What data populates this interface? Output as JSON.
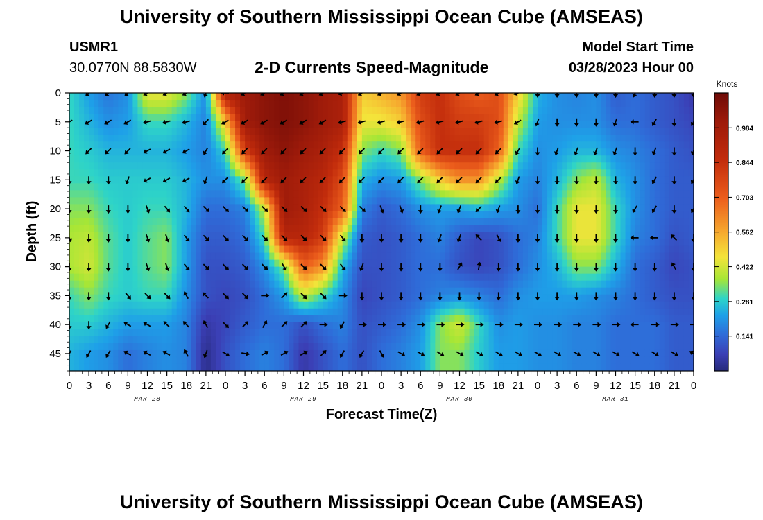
{
  "header": {
    "title": "University of Southern Mississippi Ocean Cube (AMSEAS)",
    "station_id": "USMR1",
    "coordinates": "30.0770N  88.5830W",
    "subtitle": "2-D Currents Speed-Magnitude",
    "model_start_label": "Model Start Time",
    "model_start_value": "03/28/2023 Hour 00"
  },
  "footer": {
    "title": "University of Southern Mississippi Ocean Cube (AMSEAS)"
  },
  "chart_data": {
    "type": "heatmap",
    "title": "2-D Currents Speed-Magnitude",
    "xlabel": "Forecast Time(Z)",
    "ylabel": "Depth (ft)",
    "x_ticks": [
      "0",
      "3",
      "6",
      "9",
      "12",
      "15",
      "18",
      "21",
      "0",
      "3",
      "6",
      "9",
      "12",
      "15",
      "18",
      "21",
      "0",
      "3",
      "6",
      "9",
      "12",
      "15",
      "18",
      "21",
      "0",
      "3",
      "6",
      "9",
      "12",
      "15",
      "18",
      "21",
      "0"
    ],
    "x_range_hours": [
      0,
      96
    ],
    "date_labels": [
      {
        "label": "MAR 28",
        "hour": 12
      },
      {
        "label": "MAR 29",
        "hour": 36
      },
      {
        "label": "MAR 30",
        "hour": 60
      },
      {
        "label": "MAR 31",
        "hour": 84
      }
    ],
    "y_ticks": [
      "0",
      "5",
      "10",
      "15",
      "20",
      "25",
      "30",
      "35",
      "40",
      "45"
    ],
    "y_range_ft": [
      0,
      48
    ],
    "colorbar": {
      "title": "Knots",
      "ticks": [
        "0.984",
        "0.844",
        "0.703",
        "0.562",
        "0.422",
        "0.281",
        "0.141"
      ],
      "range": [
        0,
        1.125
      ]
    },
    "speed_grid": {
      "hours": [
        0,
        3,
        6,
        9,
        12,
        15,
        18,
        21,
        24,
        27,
        30,
        33,
        36,
        39,
        42,
        45,
        48,
        51,
        54,
        57,
        60,
        63,
        66,
        69,
        72,
        75,
        78,
        81,
        84,
        87,
        90,
        93,
        96
      ],
      "depths": [
        0,
        5,
        10,
        15,
        20,
        25,
        30,
        35,
        40,
        45
      ],
      "rows": [
        [
          0.3,
          0.22,
          0.16,
          0.2,
          0.45,
          0.45,
          0.35,
          0.2,
          0.95,
          1.0,
          1.05,
          1.08,
          1.05,
          1.0,
          0.95,
          0.5,
          0.55,
          0.6,
          0.8,
          0.85,
          0.75,
          0.7,
          0.75,
          0.5,
          0.25,
          0.2,
          0.18,
          0.2,
          0.12,
          0.15,
          0.12,
          0.1,
          0.05
        ],
        [
          0.3,
          0.25,
          0.2,
          0.22,
          0.3,
          0.3,
          0.25,
          0.18,
          0.5,
          1.0,
          1.05,
          1.08,
          1.05,
          1.0,
          0.95,
          0.45,
          0.45,
          0.5,
          0.75,
          0.85,
          0.8,
          0.8,
          0.75,
          0.4,
          0.22,
          0.2,
          0.2,
          0.2,
          0.15,
          0.15,
          0.12,
          0.1,
          0.08
        ],
        [
          0.3,
          0.28,
          0.25,
          0.25,
          0.25,
          0.25,
          0.22,
          0.18,
          0.3,
          0.8,
          1.0,
          1.05,
          1.0,
          0.95,
          0.85,
          0.35,
          0.3,
          0.35,
          0.7,
          0.85,
          0.85,
          0.85,
          0.7,
          0.3,
          0.2,
          0.22,
          0.25,
          0.25,
          0.2,
          0.18,
          0.15,
          0.12,
          0.1
        ],
        [
          0.3,
          0.3,
          0.28,
          0.28,
          0.28,
          0.28,
          0.25,
          0.2,
          0.2,
          0.35,
          0.9,
          1.0,
          0.95,
          0.9,
          0.75,
          0.25,
          0.2,
          0.22,
          0.35,
          0.5,
          0.6,
          0.6,
          0.4,
          0.22,
          0.18,
          0.25,
          0.35,
          0.4,
          0.25,
          0.2,
          0.15,
          0.12,
          0.12
        ],
        [
          0.35,
          0.35,
          0.3,
          0.28,
          0.3,
          0.3,
          0.25,
          0.15,
          0.15,
          0.18,
          0.4,
          1.0,
          0.95,
          0.85,
          0.7,
          0.18,
          0.12,
          0.15,
          0.2,
          0.22,
          0.22,
          0.25,
          0.22,
          0.2,
          0.15,
          0.3,
          0.45,
          0.45,
          0.3,
          0.2,
          0.15,
          0.12,
          0.12
        ],
        [
          0.38,
          0.4,
          0.32,
          0.28,
          0.32,
          0.35,
          0.22,
          0.12,
          0.12,
          0.15,
          0.3,
          0.9,
          0.9,
          0.8,
          0.4,
          0.12,
          0.1,
          0.12,
          0.15,
          0.18,
          0.12,
          0.08,
          0.1,
          0.15,
          0.18,
          0.3,
          0.45,
          0.45,
          0.3,
          0.18,
          0.15,
          0.1,
          0.12
        ],
        [
          0.38,
          0.42,
          0.32,
          0.28,
          0.32,
          0.35,
          0.22,
          0.1,
          0.1,
          0.12,
          0.2,
          0.35,
          0.7,
          0.6,
          0.25,
          0.1,
          0.1,
          0.12,
          0.15,
          0.15,
          0.1,
          0.08,
          0.1,
          0.15,
          0.2,
          0.25,
          0.35,
          0.35,
          0.25,
          0.15,
          0.12,
          0.08,
          0.1
        ],
        [
          0.3,
          0.35,
          0.3,
          0.28,
          0.3,
          0.3,
          0.2,
          0.1,
          0.08,
          0.1,
          0.15,
          0.22,
          0.4,
          0.3,
          0.2,
          0.08,
          0.1,
          0.12,
          0.15,
          0.18,
          0.2,
          0.18,
          0.15,
          0.2,
          0.22,
          0.22,
          0.22,
          0.2,
          0.18,
          0.15,
          0.12,
          0.1,
          0.1
        ],
        [
          0.28,
          0.28,
          0.25,
          0.22,
          0.22,
          0.22,
          0.18,
          0.05,
          0.08,
          0.12,
          0.15,
          0.15,
          0.1,
          0.15,
          0.18,
          0.1,
          0.12,
          0.15,
          0.2,
          0.35,
          0.42,
          0.3,
          0.2,
          0.22,
          0.2,
          0.2,
          0.18,
          0.18,
          0.15,
          0.15,
          0.15,
          0.12,
          0.12
        ],
        [
          0.25,
          0.22,
          0.2,
          0.15,
          0.18,
          0.2,
          0.18,
          0.02,
          0.1,
          0.15,
          0.18,
          0.15,
          0.05,
          0.1,
          0.15,
          0.1,
          0.15,
          0.18,
          0.22,
          0.35,
          0.35,
          0.28,
          0.22,
          0.22,
          0.2,
          0.2,
          0.18,
          0.18,
          0.15,
          0.15,
          0.15,
          0.12,
          0.12
        ]
      ]
    },
    "direction_grid_deg": {
      "note": "arrow direction, degrees clockwise from north, per depth row and 3-hour step",
      "rows": [
        [
          225,
          225,
          225,
          225,
          240,
          240,
          240,
          200,
          270,
          240,
          240,
          240,
          240,
          240,
          250,
          240,
          240,
          240,
          240,
          240,
          240,
          240,
          240,
          250,
          180,
          180,
          180,
          180,
          180,
          200,
          180,
          180,
          180
        ],
        [
          240,
          240,
          240,
          240,
          255,
          255,
          255,
          225,
          240,
          240,
          240,
          240,
          240,
          240,
          255,
          255,
          255,
          255,
          255,
          255,
          255,
          255,
          255,
          240,
          200,
          180,
          180,
          180,
          200,
          270,
          210,
          180,
          210
        ],
        [
          210,
          225,
          225,
          225,
          240,
          240,
          240,
          210,
          225,
          225,
          225,
          225,
          225,
          225,
          225,
          225,
          225,
          225,
          225,
          225,
          225,
          225,
          225,
          210,
          180,
          200,
          200,
          200,
          200,
          180,
          200,
          180,
          200
        ],
        [
          180,
          180,
          180,
          200,
          240,
          240,
          240,
          200,
          225,
          225,
          225,
          225,
          225,
          225,
          225,
          225,
          225,
          225,
          225,
          225,
          225,
          225,
          225,
          200,
          180,
          180,
          180,
          180,
          180,
          180,
          210,
          180,
          210
        ],
        [
          180,
          180,
          180,
          180,
          160,
          140,
          140,
          135,
          135,
          135,
          135,
          135,
          135,
          135,
          135,
          135,
          160,
          160,
          180,
          200,
          200,
          225,
          200,
          180,
          180,
          180,
          180,
          180,
          180,
          210,
          210,
          180,
          210
        ],
        [
          160,
          180,
          180,
          180,
          160,
          160,
          140,
          135,
          135,
          135,
          135,
          135,
          135,
          135,
          140,
          180,
          180,
          180,
          180,
          200,
          200,
          315,
          150,
          180,
          180,
          180,
          180,
          180,
          180,
          270,
          270,
          315,
          180
        ],
        [
          180,
          180,
          180,
          180,
          160,
          160,
          140,
          135,
          135,
          135,
          135,
          150,
          135,
          135,
          140,
          200,
          180,
          180,
          180,
          180,
          30,
          10,
          180,
          180,
          180,
          180,
          180,
          180,
          180,
          180,
          180,
          330,
          180
        ],
        [
          180,
          180,
          180,
          140,
          135,
          135,
          330,
          315,
          135,
          135,
          90,
          45,
          135,
          135,
          90,
          180,
          180,
          180,
          180,
          180,
          180,
          180,
          180,
          180,
          180,
          180,
          180,
          180,
          180,
          180,
          180,
          180,
          180
        ],
        [
          180,
          180,
          210,
          300,
          300,
          315,
          315,
          330,
          135,
          45,
          30,
          45,
          45,
          90,
          210,
          90,
          90,
          90,
          90,
          90,
          90,
          90,
          90,
          90,
          90,
          90,
          90,
          90,
          90,
          270,
          90,
          90,
          90
        ],
        [
          210,
          210,
          210,
          300,
          300,
          300,
          330,
          200,
          120,
          100,
          60,
          60,
          60,
          45,
          210,
          210,
          150,
          120,
          120,
          120,
          120,
          120,
          120,
          120,
          120,
          120,
          120,
          120,
          120,
          120,
          120,
          120,
          300
        ]
      ]
    }
  }
}
